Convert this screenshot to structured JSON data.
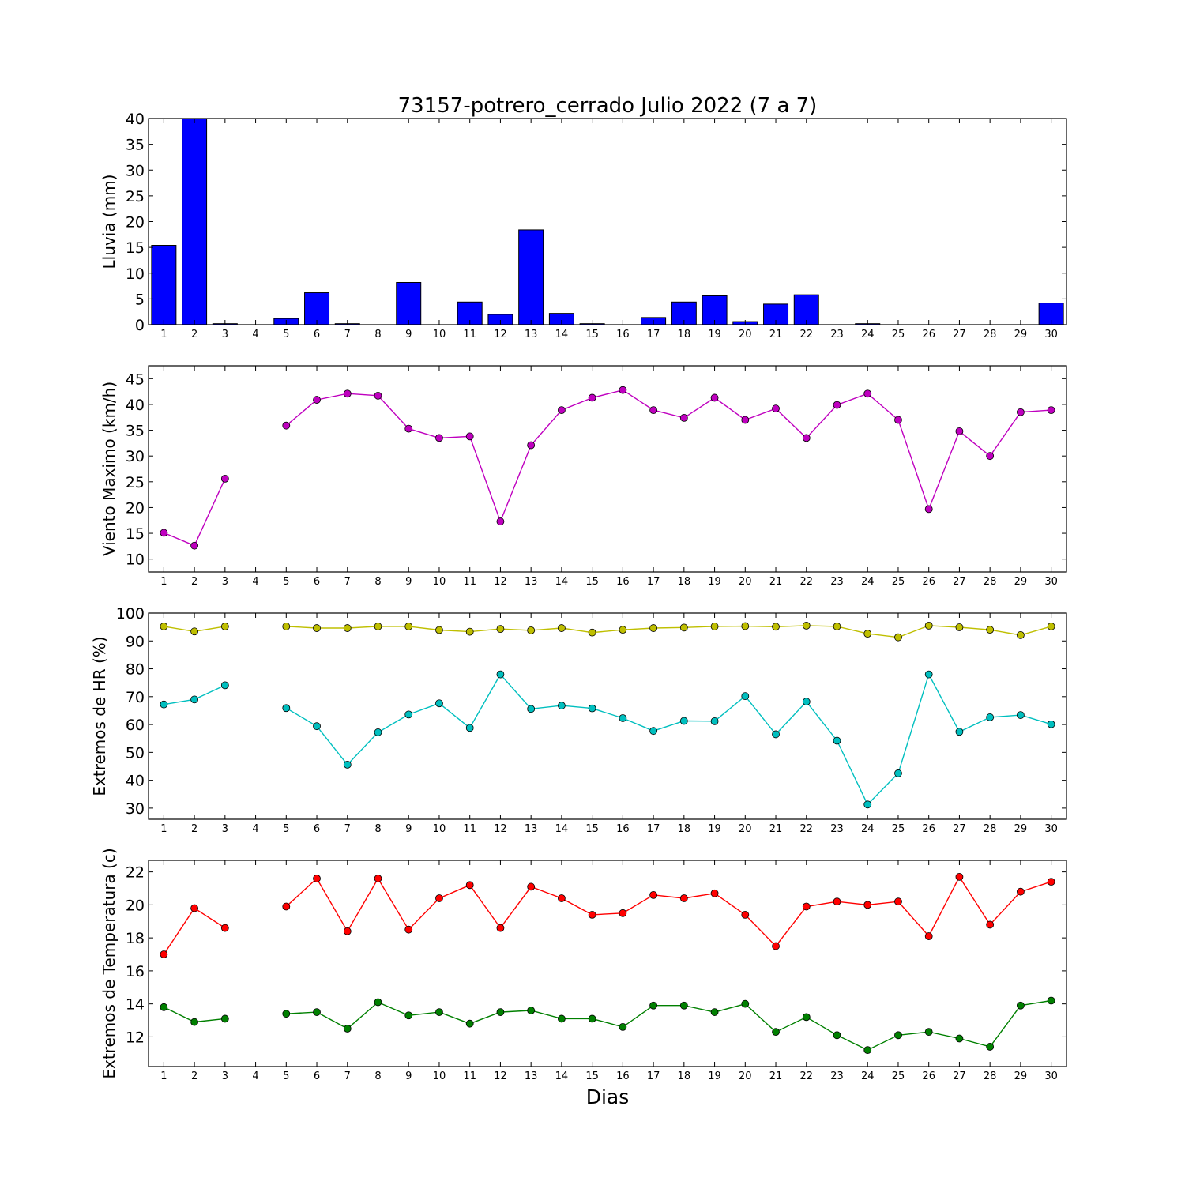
{
  "figure": {
    "title": "73157-potrero_cerrado Julio 2022  (7 a 7)",
    "xlabel": "Dias"
  },
  "chart_data": [
    {
      "type": "bar",
      "ylabel": "Lluvia (mm)",
      "ylim": [
        0,
        40
      ],
      "yticks": [
        0,
        5,
        10,
        15,
        20,
        25,
        30,
        35,
        40
      ],
      "xlim": [
        0.5,
        30.5
      ],
      "x_ticks": [
        1,
        2,
        3,
        4,
        5,
        6,
        7,
        8,
        9,
        10,
        11,
        12,
        13,
        14,
        15,
        16,
        17,
        18,
        19,
        20,
        21,
        22,
        23,
        24,
        25,
        26,
        27,
        28,
        29,
        30
      ],
      "x": [
        1,
        2,
        3,
        4,
        5,
        6,
        7,
        8,
        9,
        10,
        11,
        12,
        13,
        14,
        15,
        16,
        17,
        18,
        19,
        20,
        21,
        22,
        23,
        24,
        25,
        26,
        27,
        28,
        29,
        30
      ],
      "series": [
        {
          "color": "#0000ff",
          "values": [
            15.4,
            40,
            0.2,
            0,
            1.2,
            6.2,
            0.2,
            0,
            8.2,
            0,
            4.4,
            2.0,
            18.4,
            2.2,
            0.2,
            0,
            1.4,
            4.4,
            5.6,
            0.6,
            4.0,
            5.8,
            0,
            0.2,
            0,
            0,
            0,
            0,
            0,
            4.2
          ]
        }
      ]
    },
    {
      "type": "line",
      "ylabel": "Viento Maximo (km/h)",
      "ylim": [
        7.5,
        47.5
      ],
      "yticks": [
        10,
        15,
        20,
        25,
        30,
        35,
        40,
        45
      ],
      "xlim": [
        0.5,
        30.5
      ],
      "x_ticks": [
        1,
        2,
        3,
        4,
        5,
        6,
        7,
        8,
        9,
        10,
        11,
        12,
        13,
        14,
        15,
        16,
        17,
        18,
        19,
        20,
        21,
        22,
        23,
        24,
        25,
        26,
        27,
        28,
        29,
        30
      ],
      "x": [
        1,
        2,
        3,
        4,
        5,
        6,
        7,
        8,
        9,
        10,
        11,
        12,
        13,
        14,
        15,
        16,
        17,
        18,
        19,
        20,
        21,
        22,
        23,
        24,
        25,
        26,
        27,
        28,
        29,
        30
      ],
      "series": [
        {
          "color": "#bf00bf",
          "values": [
            15.1,
            12.6,
            25.6,
            null,
            35.9,
            40.9,
            42.1,
            41.7,
            35.3,
            33.5,
            33.8,
            17.3,
            32.1,
            38.9,
            41.3,
            42.8,
            38.9,
            37.4,
            41.3,
            37.0,
            39.2,
            33.5,
            39.9,
            42.1,
            37.0,
            19.7,
            34.8,
            30.0,
            38.5,
            38.9
          ]
        }
      ]
    },
    {
      "type": "line",
      "ylabel": "Extremos de HR (%)",
      "ylim": [
        26,
        100
      ],
      "yticks": [
        30,
        40,
        50,
        60,
        70,
        80,
        90,
        100
      ],
      "xlim": [
        0.5,
        30.5
      ],
      "x_ticks": [
        1,
        2,
        3,
        4,
        5,
        6,
        7,
        8,
        9,
        10,
        11,
        12,
        13,
        14,
        15,
        16,
        17,
        18,
        19,
        20,
        21,
        22,
        23,
        24,
        25,
        26,
        27,
        28,
        29,
        30
      ],
      "x": [
        1,
        2,
        3,
        4,
        5,
        6,
        7,
        8,
        9,
        10,
        11,
        12,
        13,
        14,
        15,
        16,
        17,
        18,
        19,
        20,
        21,
        22,
        23,
        24,
        25,
        26,
        27,
        28,
        29,
        30
      ],
      "series": [
        {
          "color": "#bfbf00",
          "values": [
            95.2,
            93.4,
            95.2,
            null,
            95.2,
            94.6,
            94.6,
            95.2,
            95.2,
            93.9,
            93.3,
            94.3,
            93.8,
            94.6,
            93.0,
            94.0,
            94.6,
            94.8,
            95.2,
            95.3,
            95.1,
            95.5,
            95.2,
            92.6,
            91.3,
            95.5,
            94.9,
            94.0,
            92.1,
            95.2
          ]
        },
        {
          "color": "#00bfbf",
          "values": [
            67.2,
            69.0,
            74.1,
            null,
            65.9,
            59.4,
            45.6,
            57.2,
            63.6,
            67.6,
            58.8,
            78.0,
            65.6,
            66.8,
            65.8,
            62.3,
            57.7,
            61.3,
            61.2,
            70.2,
            56.5,
            68.2,
            54.2,
            31.3,
            42.5,
            78.0,
            57.4,
            62.6,
            63.4,
            60.1
          ]
        }
      ]
    },
    {
      "type": "line",
      "ylabel": "Extremos de Temperatura (c)",
      "ylim": [
        10.2,
        22.7
      ],
      "yticks": [
        12,
        14,
        16,
        18,
        20,
        22
      ],
      "xlim": [
        0.5,
        30.5
      ],
      "x_ticks": [
        1,
        2,
        3,
        4,
        5,
        6,
        7,
        8,
        9,
        10,
        11,
        12,
        13,
        14,
        15,
        16,
        17,
        18,
        19,
        20,
        21,
        22,
        23,
        24,
        25,
        26,
        27,
        28,
        29,
        30
      ],
      "x": [
        1,
        2,
        3,
        4,
        5,
        6,
        7,
        8,
        9,
        10,
        11,
        12,
        13,
        14,
        15,
        16,
        17,
        18,
        19,
        20,
        21,
        22,
        23,
        24,
        25,
        26,
        27,
        28,
        29,
        30
      ],
      "series": [
        {
          "color": "#ff0000",
          "values": [
            17.0,
            19.8,
            18.6,
            null,
            19.9,
            21.6,
            18.4,
            21.6,
            18.5,
            20.4,
            21.2,
            18.6,
            21.1,
            20.4,
            19.4,
            19.5,
            20.6,
            20.4,
            20.7,
            19.4,
            17.5,
            19.9,
            20.2,
            20.0,
            20.2,
            18.1,
            21.7,
            18.8,
            20.8,
            21.4
          ]
        },
        {
          "color": "#008000",
          "values": [
            13.8,
            12.9,
            13.1,
            null,
            13.4,
            13.5,
            12.5,
            14.1,
            13.3,
            13.5,
            12.8,
            13.5,
            13.6,
            13.1,
            13.1,
            12.6,
            13.9,
            13.9,
            13.5,
            14.0,
            12.3,
            13.2,
            12.1,
            11.2,
            12.1,
            12.3,
            11.9,
            11.4,
            13.9,
            14.2
          ]
        }
      ]
    }
  ]
}
